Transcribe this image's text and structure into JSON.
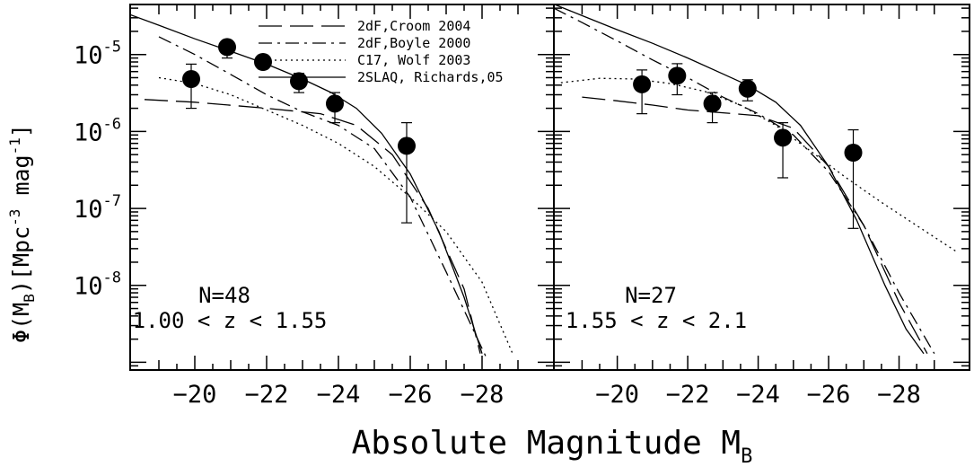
{
  "chart_data": [
    {
      "type": "scatter",
      "panel": "left",
      "xlabel": "Absolute Magnitude M_B",
      "ylabel": "Φ(M_B)[Mpc^-3 mag^-1]",
      "x_ticks": [
        -20,
        -22,
        -24,
        -26,
        -28
      ],
      "y_ticks": [
        1e-05,
        1e-06,
        1e-07,
        1e-08
      ],
      "y_tick_labels": [
        "10-5",
        "10-6",
        "10-7",
        "10-8"
      ],
      "xlim": [
        -18.2,
        -30
      ],
      "ylim_log10": [
        -9.1,
        -4.35
      ],
      "yscale": "log",
      "annotation_n": "N=48",
      "annotation_z": "1.00 < z < 1.55",
      "points": [
        {
          "x": -19.9,
          "y": 4.8e-06,
          "y_lo": 2e-06,
          "y_hi": 7.5e-06
        },
        {
          "x": -20.9,
          "y": 1.25e-05,
          "y_lo": 9e-06,
          "y_hi": 1.5e-05
        },
        {
          "x": -21.9,
          "y": 8e-06,
          "y_lo": 6.5e-06,
          "y_hi": 9.5e-06
        },
        {
          "x": -22.9,
          "y": 4.5e-06,
          "y_lo": 3.2e-06,
          "y_hi": 5.7e-06
        },
        {
          "x": -23.9,
          "y": 2.3e-06,
          "y_lo": 1.3e-06,
          "y_hi": 3.2e-06
        },
        {
          "x": -25.9,
          "y": 6.5e-07,
          "y_lo": 6.5e-08,
          "y_hi": 1.3e-06
        }
      ],
      "series": [
        {
          "name": "2dF,Croom 2004",
          "style": "dashed",
          "x": [
            -18.6,
            -20,
            -22,
            -23.5,
            -24.5,
            -25.5,
            -26.5,
            -27.5,
            -27.95
          ],
          "y": [
            2.6e-06,
            2.4e-06,
            2e-06,
            1.7e-06,
            1.2e-06,
            5e-07,
            1e-07,
            9e-09,
            1.3e-09
          ]
        },
        {
          "name": "2dF,Boyle 2000",
          "style": "dashdot",
          "x": [
            -19.0,
            -20,
            -21,
            -22,
            -23,
            -24,
            -25,
            -26,
            -27,
            -28.1
          ],
          "y": [
            1.7e-05,
            1e-05,
            5.5e-06,
            3e-06,
            1.8e-06,
            1.2e-06,
            6e-07,
            1.4e-07,
            1.5e-08,
            1.2e-09
          ]
        },
        {
          "name": "C17, Wolf 2003",
          "style": "dotted",
          "x": [
            -19.0,
            -20,
            -21,
            -22,
            -23,
            -24,
            -25,
            -26,
            -27,
            -28,
            -28.85
          ],
          "y": [
            5e-06,
            4.2e-06,
            3e-06,
            1.9e-06,
            1.2e-06,
            7e-07,
            3.5e-07,
            1.4e-07,
            5e-08,
            1.1e-08,
            1.3e-09
          ]
        },
        {
          "name": "2SLAQ, Richards,05",
          "style": "solid",
          "x": [
            -18.2,
            -19,
            -20,
            -21,
            -22,
            -23,
            -23.8,
            -24.5,
            -25.2,
            -26,
            -26.8,
            -27.5,
            -28.0
          ],
          "y": [
            3.3e-05,
            2.4e-05,
            1.6e-05,
            1.1e-05,
            7.5e-06,
            4.8e-06,
            3.2e-06,
            2e-06,
            9.5e-07,
            2.8e-07,
            5e-08,
            7e-09,
            1.3e-09
          ]
        }
      ]
    },
    {
      "type": "scatter",
      "panel": "right",
      "xlabel": "Absolute Magnitude M_B",
      "x_ticks": [
        -20,
        -22,
        -24,
        -26,
        -28
      ],
      "xlim": [
        -18.2,
        -30
      ],
      "ylim_log10": [
        -9.1,
        -4.35
      ],
      "yscale": "log",
      "annotation_n": "N=27",
      "annotation_z": "1.55 < z < 2.1",
      "points": [
        {
          "x": -20.7,
          "y": 4.1e-06,
          "y_lo": 1.7e-06,
          "y_hi": 6.3e-06
        },
        {
          "x": -21.7,
          "y": 5.3e-06,
          "y_lo": 3e-06,
          "y_hi": 7.6e-06
        },
        {
          "x": -22.7,
          "y": 2.3e-06,
          "y_lo": 1.3e-06,
          "y_hi": 3.2e-06
        },
        {
          "x": -23.7,
          "y": 3.6e-06,
          "y_lo": 2.5e-06,
          "y_hi": 4.7e-06
        },
        {
          "x": -24.7,
          "y": 8.3e-07,
          "y_lo": 2.5e-07,
          "y_hi": 1.3e-06
        },
        {
          "x": -26.7,
          "y": 5.3e-07,
          "y_lo": 5.5e-08,
          "y_hi": 1.05e-06
        }
      ],
      "series": [
        {
          "name": "2dF,Croom 2004",
          "style": "dashed",
          "x": [
            -19.0,
            -20,
            -21,
            -22,
            -23,
            -24,
            -25,
            -26,
            -27,
            -28,
            -28.8
          ],
          "y": [
            2.8e-06,
            2.5e-06,
            2.2e-06,
            1.9e-06,
            1.75e-06,
            1.6e-06,
            1.1e-06,
            3.5e-07,
            6e-08,
            6e-09,
            1.3e-09
          ]
        },
        {
          "name": "2dF,Boyle 2000",
          "style": "dashdot",
          "x": [
            -18.2,
            -19,
            -20,
            -21,
            -22,
            -23,
            -24,
            -25,
            -26,
            -27,
            -28,
            -29.0
          ],
          "y": [
            4e-05,
            2.6e-05,
            1.5e-05,
            8.5e-06,
            5e-06,
            2.8e-06,
            1.7e-06,
            9e-07,
            3e-07,
            6e-08,
            8e-09,
            1.3e-09
          ]
        },
        {
          "name": "C17, Wolf 2003",
          "style": "dotted",
          "x": [
            -18.4,
            -19.5,
            -20.5,
            -21.5,
            -22.5,
            -23.5,
            -24.5,
            -25.5,
            -26.5,
            -27.5,
            -28.5,
            -29.6
          ],
          "y": [
            4.3e-06,
            4.9e-06,
            4.8e-06,
            4.2e-06,
            3.3e-06,
            2.2e-06,
            1.2e-06,
            5.5e-07,
            2.5e-07,
            1.2e-07,
            6e-08,
            2.8e-08
          ]
        },
        {
          "name": "2SLAQ, Richards,05",
          "style": "solid",
          "x": [
            -18.2,
            -19,
            -20,
            -21,
            -22,
            -23,
            -23.7,
            -24.5,
            -25.2,
            -26,
            -26.8,
            -27.6,
            -28.2,
            -28.7
          ],
          "y": [
            4.5e-05,
            3.2e-05,
            2.1e-05,
            1.4e-05,
            9e-06,
            5.6e-06,
            4e-06,
            2.4e-06,
            1.2e-06,
            3.5e-07,
            7e-08,
            1e-08,
            2.7e-09,
            1.3e-09
          ]
        }
      ]
    }
  ],
  "legend": [
    {
      "label": "2dF,Croom 2004",
      "style": "dashed"
    },
    {
      "label": "2dF,Boyle 2000",
      "style": "dashdot"
    },
    {
      "label": "C17, Wolf 2003",
      "style": "dotted"
    },
    {
      "label": "2SLAQ, Richards,05",
      "style": "solid"
    }
  ],
  "axis_text": {
    "ylabel_main": "Φ(M",
    "ylabel_sub": "B",
    "ylabel_rest": ")[Mpc",
    "ylabel_sup1": "-3",
    "ylabel_mag": " mag",
    "ylabel_sup2": "-1",
    "ylabel_end": "]",
    "xlabel_main": "Absolute Magnitude M",
    "xlabel_sub": "B"
  },
  "colors": {
    "ink": "#000000",
    "background": "#ffffff"
  }
}
